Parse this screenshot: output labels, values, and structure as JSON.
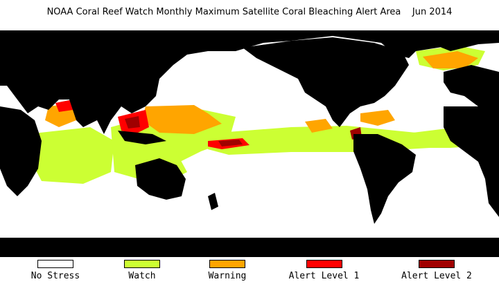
{
  "title": "NOAA Coral Reef Watch Monthly Maximum Satellite Coral Bleaching Alert Area    Jun 2014",
  "colors": {
    "land": "#000000",
    "ocean_no_stress": "#ffffff",
    "watch": "#ccff33",
    "warning": "#ffa500",
    "alert1": "#ff0000",
    "alert2": "#a00000"
  },
  "legend": [
    {
      "label": "No Stress",
      "color": "#ffffff"
    },
    {
      "label": "Watch",
      "color": "#ccff33"
    },
    {
      "label": "Warning",
      "color": "#ffa500"
    },
    {
      "label": "Alert Level 1",
      "color": "#ff0000"
    },
    {
      "label": "Alert Level 2",
      "color": "#a00000"
    }
  ]
}
